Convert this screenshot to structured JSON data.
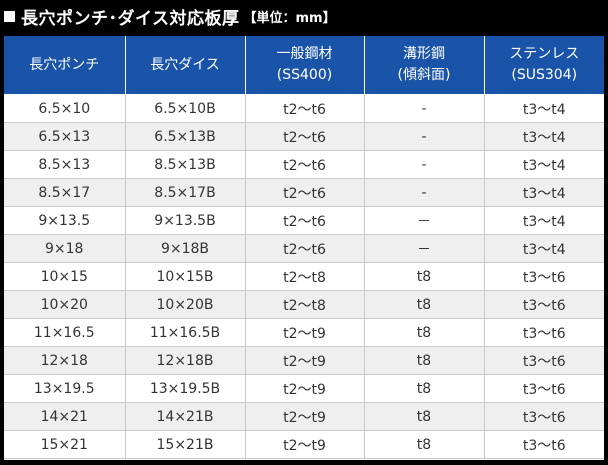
{
  "header": {
    "title": "長穴ポンチ･ダイス対応板厚",
    "unit": "【単位：mm】"
  },
  "colors": {
    "background": "#000000",
    "header_blue": "#1a54a8",
    "row_alt": "#efefef",
    "grid": "#c9c9c9"
  },
  "table": {
    "columns": [
      {
        "label": "長穴ポンチ",
        "sub": ""
      },
      {
        "label": "長穴ダイス",
        "sub": ""
      },
      {
        "label": "一般鋼材",
        "sub": "(SS400)"
      },
      {
        "label": "溝形鋼",
        "sub": "(傾斜面)"
      },
      {
        "label": "ステンレス",
        "sub": "(SUS304)"
      }
    ],
    "rows": [
      [
        "6.5×10",
        "6.5×10B",
        "t2～t6",
        "-",
        "t3～t4"
      ],
      [
        "6.5×13",
        "6.5×13B",
        "t2～t6",
        "-",
        "t3～t4"
      ],
      [
        "8.5×13",
        "8.5×13B",
        "t2～t6",
        "-",
        "t3～t4"
      ],
      [
        "8.5×17",
        "8.5×17B",
        "t2～t6",
        "-",
        "t3～t4"
      ],
      [
        "9×13.5",
        "9×13.5B",
        "t2～t6",
        "－",
        "t3～t4"
      ],
      [
        "9×18",
        "9×18B",
        "t2～t6",
        "－",
        "t3～t4"
      ],
      [
        "10×15",
        "10×15B",
        "t2～t8",
        "t8",
        "t3～t6"
      ],
      [
        "10×20",
        "10×20B",
        "t2～t8",
        "t8",
        "t3～t6"
      ],
      [
        "11×16.5",
        "11×16.5B",
        "t2～t9",
        "t8",
        "t3～t6"
      ],
      [
        "12×18",
        "12×18B",
        "t2～t9",
        "t8",
        "t3～t6"
      ],
      [
        "13×19.5",
        "13×19.5B",
        "t2～t9",
        "t8",
        "t3～t6"
      ],
      [
        "14×21",
        "14×21B",
        "t2～t9",
        "t8",
        "t3～t6"
      ],
      [
        "15×21",
        "15×21B",
        "t2～t9",
        "t8",
        "t3～t6"
      ]
    ]
  }
}
